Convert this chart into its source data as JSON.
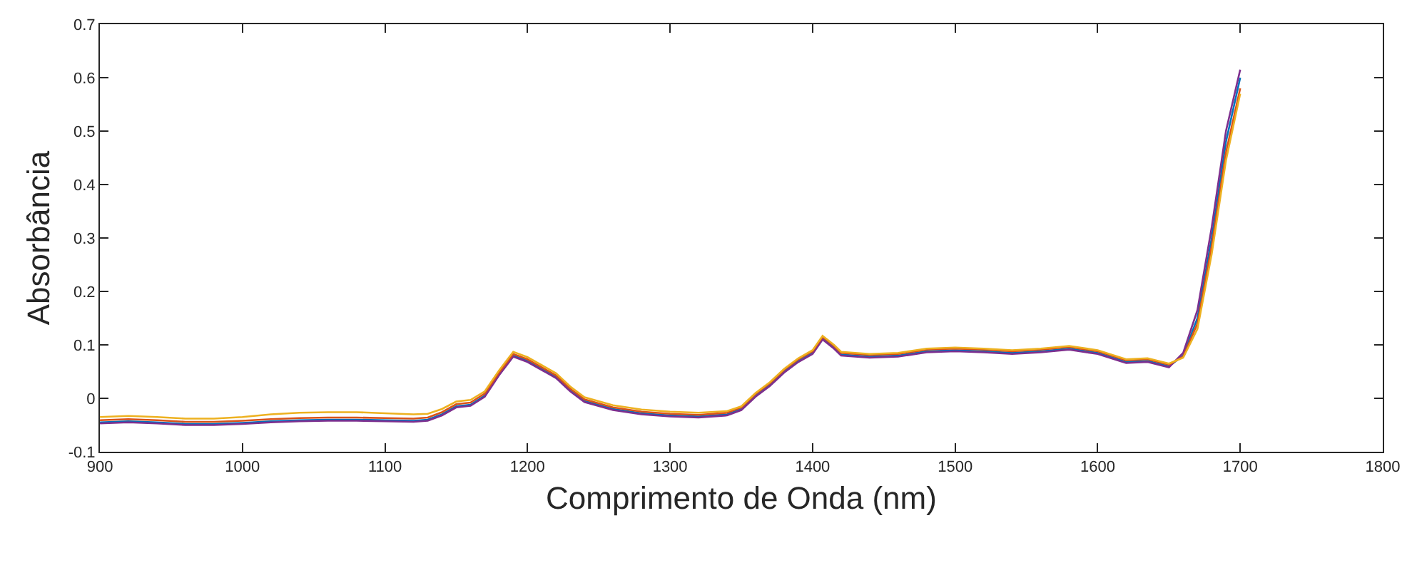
{
  "chart_data": {
    "type": "line",
    "xlabel": "Comprimento de Onda (nm)",
    "ylabel": "Absorbância",
    "x": [
      900,
      920,
      940,
      960,
      980,
      1000,
      1020,
      1040,
      1060,
      1080,
      1100,
      1120,
      1130,
      1140,
      1150,
      1160,
      1170,
      1180,
      1190,
      1200,
      1210,
      1220,
      1230,
      1240,
      1260,
      1280,
      1300,
      1320,
      1340,
      1350,
      1360,
      1370,
      1380,
      1390,
      1400,
      1407,
      1415,
      1420,
      1440,
      1460,
      1480,
      1500,
      1520,
      1540,
      1560,
      1580,
      1600,
      1620,
      1635,
      1650,
      1660,
      1670,
      1680,
      1690,
      1700
    ],
    "series": [
      {
        "color": "#0072bd",
        "values": [
          -0.045,
          -0.043,
          -0.045,
          -0.048,
          -0.048,
          -0.046,
          -0.043,
          -0.041,
          -0.04,
          -0.04,
          -0.041,
          -0.042,
          -0.04,
          -0.03,
          -0.015,
          -0.012,
          0.005,
          0.045,
          0.08,
          0.07,
          0.055,
          0.04,
          0.015,
          -0.005,
          -0.02,
          -0.028,
          -0.032,
          -0.034,
          -0.03,
          -0.02,
          0.005,
          0.025,
          0.05,
          0.07,
          0.085,
          0.112,
          0.095,
          0.082,
          0.078,
          0.08,
          0.088,
          0.09,
          0.088,
          0.085,
          0.088,
          0.093,
          0.085,
          0.068,
          0.07,
          0.06,
          0.08,
          0.15,
          0.3,
          0.48,
          0.6
        ]
      },
      {
        "color": "#7e2f8e",
        "values": [
          -0.047,
          -0.045,
          -0.047,
          -0.05,
          -0.05,
          -0.048,
          -0.045,
          -0.043,
          -0.042,
          -0.042,
          -0.043,
          -0.044,
          -0.042,
          -0.032,
          -0.017,
          -0.014,
          0.003,
          0.043,
          0.078,
          0.068,
          0.053,
          0.038,
          0.013,
          -0.007,
          -0.022,
          -0.03,
          -0.034,
          -0.036,
          -0.032,
          -0.022,
          0.003,
          0.023,
          0.048,
          0.068,
          0.083,
          0.11,
          0.093,
          0.08,
          0.076,
          0.078,
          0.086,
          0.088,
          0.086,
          0.083,
          0.086,
          0.091,
          0.083,
          0.066,
          0.068,
          0.058,
          0.085,
          0.165,
          0.32,
          0.5,
          0.615
        ]
      },
      {
        "color": "#d95319",
        "values": [
          -0.041,
          -0.039,
          -0.041,
          -0.044,
          -0.044,
          -0.042,
          -0.039,
          -0.037,
          -0.036,
          -0.036,
          -0.037,
          -0.038,
          -0.036,
          -0.026,
          -0.011,
          -0.008,
          0.009,
          0.048,
          0.083,
          0.073,
          0.058,
          0.043,
          0.018,
          -0.002,
          -0.017,
          -0.025,
          -0.029,
          -0.031,
          -0.027,
          -0.017,
          0.008,
          0.028,
          0.053,
          0.073,
          0.088,
          0.115,
          0.098,
          0.085,
          0.081,
          0.083,
          0.091,
          0.093,
          0.091,
          0.088,
          0.091,
          0.096,
          0.088,
          0.071,
          0.073,
          0.063,
          0.078,
          0.14,
          0.285,
          0.46,
          0.58
        ]
      },
      {
        "color": "#edb120",
        "values": [
          -0.035,
          -0.033,
          -0.035,
          -0.038,
          -0.038,
          -0.035,
          -0.03,
          -0.027,
          -0.026,
          -0.026,
          -0.028,
          -0.03,
          -0.029,
          -0.02,
          -0.006,
          -0.003,
          0.013,
          0.052,
          0.087,
          0.077,
          0.062,
          0.047,
          0.022,
          0.002,
          -0.013,
          -0.021,
          -0.025,
          -0.027,
          -0.024,
          -0.015,
          0.01,
          0.03,
          0.055,
          0.075,
          0.09,
          0.117,
          0.1,
          0.087,
          0.083,
          0.085,
          0.093,
          0.095,
          0.093,
          0.09,
          0.093,
          0.098,
          0.09,
          0.073,
          0.075,
          0.065,
          0.076,
          0.13,
          0.27,
          0.445,
          0.57
        ]
      }
    ],
    "xlim": [
      900,
      1800
    ],
    "xticks": [
      900,
      1000,
      1100,
      1200,
      1300,
      1400,
      1500,
      1600,
      1700,
      1800
    ],
    "ylim": [
      -0.1,
      0.7
    ],
    "yticks": [
      -0.1,
      0,
      0.1,
      0.2,
      0.3,
      0.4,
      0.5,
      0.6,
      0.7
    ],
    "line_style": "solid",
    "marker": "none"
  }
}
